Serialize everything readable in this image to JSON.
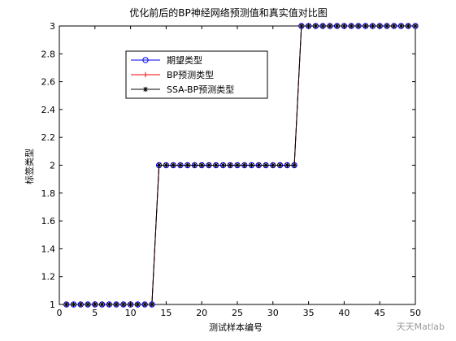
{
  "chart_data": {
    "type": "line",
    "title": "优化前后的BP神经网络预测值和真实值对比图",
    "xlabel": "测试样本编号",
    "ylabel": "标签类型",
    "xlim": [
      0,
      50
    ],
    "ylim": [
      1,
      3
    ],
    "xticks": [
      0,
      5,
      10,
      15,
      20,
      25,
      30,
      35,
      40,
      45,
      50
    ],
    "yticks": [
      1,
      1.2,
      1.4,
      1.6,
      1.8,
      2,
      2.2,
      2.4,
      2.6,
      2.8,
      3
    ],
    "legend": {
      "placement": "upper-left"
    },
    "x": [
      1,
      2,
      3,
      4,
      5,
      6,
      7,
      8,
      9,
      10,
      11,
      12,
      13,
      14,
      15,
      16,
      17,
      18,
      19,
      20,
      21,
      22,
      23,
      24,
      25,
      26,
      27,
      28,
      29,
      30,
      31,
      32,
      33,
      34,
      35,
      36,
      37,
      38,
      39,
      40,
      41,
      42,
      43,
      44,
      45,
      46,
      47,
      48,
      49,
      50
    ],
    "series": [
      {
        "name": "期望类型",
        "color": "#0000ff",
        "marker": "circle",
        "values": [
          1,
          1,
          1,
          1,
          1,
          1,
          1,
          1,
          1,
          1,
          1,
          1,
          1,
          2,
          2,
          2,
          2,
          2,
          2,
          2,
          2,
          2,
          2,
          2,
          2,
          2,
          2,
          2,
          2,
          2,
          2,
          2,
          2,
          3,
          3,
          3,
          3,
          3,
          3,
          3,
          3,
          3,
          3,
          3,
          3,
          3,
          3,
          3,
          3,
          3
        ]
      },
      {
        "name": "BP预测类型",
        "color": "#ff0000",
        "marker": "plus",
        "values": [
          1,
          1,
          1,
          1,
          1,
          1,
          1,
          1,
          1,
          1,
          1,
          1,
          1,
          2,
          2,
          2,
          2,
          2,
          2,
          2,
          2,
          2,
          2,
          2,
          2,
          2,
          2,
          2,
          2,
          2,
          2,
          2,
          2,
          3,
          3,
          3,
          3,
          3,
          3,
          3,
          3,
          3,
          3,
          3,
          3,
          3,
          3,
          3,
          3,
          3
        ]
      },
      {
        "name": "SSA-BP预测类型",
        "color": "#000000",
        "marker": "star",
        "values": [
          1,
          1,
          1,
          1,
          1,
          1,
          1,
          1,
          1,
          1,
          1,
          1,
          1,
          2,
          2,
          2,
          2,
          2,
          2,
          2,
          2,
          2,
          2,
          2,
          2,
          2,
          2,
          2,
          2,
          2,
          2,
          2,
          2,
          3,
          3,
          3,
          3,
          3,
          3,
          3,
          3,
          3,
          3,
          3,
          3,
          3,
          3,
          3,
          3,
          3
        ]
      }
    ]
  },
  "watermark": "天天Matlab"
}
